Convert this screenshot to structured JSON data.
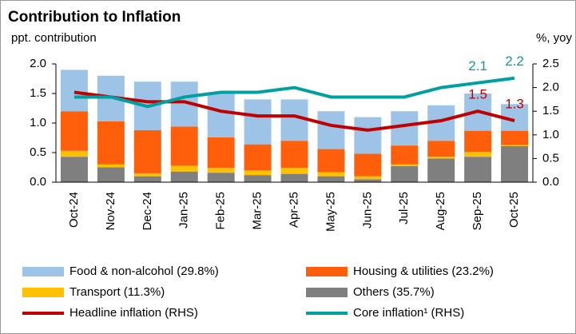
{
  "chart_data": {
    "type": "bar",
    "stacked": true,
    "title": "Contribution to Inflation",
    "y_label": "ppt. contribution",
    "y2_label": "%, yoy",
    "categories": [
      "Oct-24",
      "Nov-24",
      "Dec-24",
      "Jan-25",
      "Feb-25",
      "Mar-25",
      "Apr-25",
      "May-25",
      "Jun-25",
      "Jul-25",
      "Aug-25",
      "Sep-25",
      "Oct-25"
    ],
    "series": [
      {
        "name": "Others (35.7%)",
        "type": "bar",
        "color": "#7f7f7f",
        "values": [
          0.43,
          0.25,
          0.1,
          0.18,
          0.16,
          0.12,
          0.14,
          0.1,
          0.05,
          0.27,
          0.4,
          0.43,
          0.61
        ]
      },
      {
        "name": "Transport (11.3%)",
        "type": "bar",
        "color": "#ffc000",
        "values": [
          0.1,
          0.05,
          0.05,
          0.1,
          0.08,
          0.08,
          0.1,
          0.07,
          0.05,
          0.03,
          0.03,
          0.08,
          0.02
        ]
      },
      {
        "name": "Housing & utilities (23.2%)",
        "type": "bar",
        "color": "#ff5f0a",
        "values": [
          0.67,
          0.73,
          0.73,
          0.66,
          0.52,
          0.44,
          0.46,
          0.39,
          0.38,
          0.32,
          0.27,
          0.36,
          0.24
        ]
      },
      {
        "name": "Food & non-alcohol (29.8%)",
        "type": "bar",
        "color": "#9dc3e6",
        "values": [
          0.7,
          0.77,
          0.82,
          0.76,
          0.74,
          0.76,
          0.7,
          0.64,
          0.62,
          0.58,
          0.6,
          0.63,
          0.45
        ]
      },
      {
        "name": "Headline inflation (RHS)",
        "type": "line",
        "axis": "y2",
        "color": "#c00000",
        "values": [
          1.9,
          1.8,
          1.7,
          1.7,
          1.5,
          1.4,
          1.4,
          1.2,
          1.1,
          1.2,
          1.3,
          1.5,
          1.3
        ],
        "value_labels": [
          null,
          null,
          null,
          null,
          null,
          null,
          null,
          null,
          null,
          null,
          null,
          "1.5",
          "1.3"
        ]
      },
      {
        "name": "Core inflation¹ (RHS)",
        "type": "line",
        "axis": "y2",
        "color": "#00a0a0",
        "values": [
          1.8,
          1.8,
          1.6,
          1.8,
          1.9,
          1.9,
          2.0,
          1.8,
          1.8,
          1.8,
          2.0,
          2.1,
          2.2
        ],
        "value_labels": [
          null,
          null,
          null,
          null,
          null,
          null,
          null,
          null,
          null,
          null,
          null,
          "2.1",
          "2.2"
        ]
      }
    ],
    "ylim": [
      0,
      2.0
    ],
    "yticks": [
      {
        "value": 0,
        "label": "0.0"
      },
      0.5,
      {
        "value": 1,
        "label": "1.0"
      },
      1.5,
      {
        "value": 2,
        "label": "2.0"
      }
    ],
    "y2lim": [
      0,
      2.5
    ],
    "y2ticks": [
      {
        "value": 0,
        "label": "0.0"
      },
      0.5,
      {
        "value": 1,
        "label": "1.0"
      },
      1.5,
      {
        "value": 2,
        "label": "2.0"
      },
      2.5
    ],
    "grid": false
  }
}
